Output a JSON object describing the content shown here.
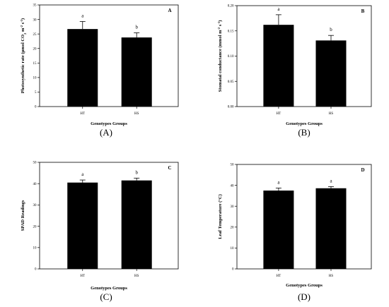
{
  "chart_data": [
    {
      "type": "bar",
      "panel_letter": "A",
      "caption": "(A)",
      "categories": [
        "HT",
        "HS"
      ],
      "values": [
        26.7,
        23.8
      ],
      "errors": [
        2.6,
        1.6
      ],
      "value_labels": [
        "a",
        "b"
      ],
      "xlabel": "Genotypes Groups",
      "ylabel_parts": [
        "Photosynthetic rate (µmol CO",
        "2",
        " m",
        "-2",
        " s",
        "-1",
        ")"
      ],
      "ylim": [
        0,
        35
      ],
      "yticks": [
        0,
        5,
        10,
        15,
        20,
        25,
        30,
        35
      ],
      "ytick_labels": [
        "0",
        "5",
        "10",
        "15",
        "20",
        "25",
        "30",
        "35"
      ]
    },
    {
      "type": "bar",
      "panel_letter": "B",
      "caption": "(B)",
      "categories": [
        "HT",
        "HS"
      ],
      "values": [
        0.162,
        0.131
      ],
      "errors": [
        0.02,
        0.01
      ],
      "value_labels": [
        "a",
        "b"
      ],
      "xlabel": "Genotypes Groups",
      "ylabel_parts": [
        "Stomatal conductance (mmol m",
        "-2",
        " s",
        "-1",
        ")"
      ],
      "ylim": [
        0,
        0.2
      ],
      "yticks": [
        0,
        0.05,
        0.1,
        0.15,
        0.2
      ],
      "ytick_labels": [
        "0.00",
        "0.05",
        "0.10",
        "0.15",
        "0.20"
      ]
    },
    {
      "type": "bar",
      "panel_letter": "C",
      "caption": "(C)",
      "categories": [
        "HT",
        "HS"
      ],
      "values": [
        40.5,
        41.5
      ],
      "errors": [
        1.2,
        1.1
      ],
      "value_labels": [
        "a",
        "b"
      ],
      "xlabel": "Genotypes Groups",
      "ylabel_parts": [
        "SPAD Readings"
      ],
      "ylim": [
        0,
        50
      ],
      "yticks": [
        0,
        10,
        20,
        30,
        40,
        50
      ],
      "ytick_labels": [
        "0",
        "10",
        "20",
        "30",
        "40",
        "50"
      ]
    },
    {
      "type": "bar",
      "panel_letter": "D",
      "caption": "(D)",
      "categories": [
        "HT",
        "HS"
      ],
      "values": [
        37.5,
        38.6
      ],
      "errors": [
        1.2,
        0.8
      ],
      "value_labels": [
        "a",
        "a"
      ],
      "xlabel": "Genotypes Groups",
      "ylabel_parts": [
        "Leaf Temperature (°C)"
      ],
      "ylim": [
        0,
        50
      ],
      "yticks": [
        0,
        10,
        20,
        30,
        40,
        50
      ],
      "ytick_labels": [
        "0",
        "10",
        "20",
        "30",
        "40",
        "50"
      ]
    }
  ],
  "colors": {
    "bar": "#000000",
    "axis": "#000000"
  }
}
